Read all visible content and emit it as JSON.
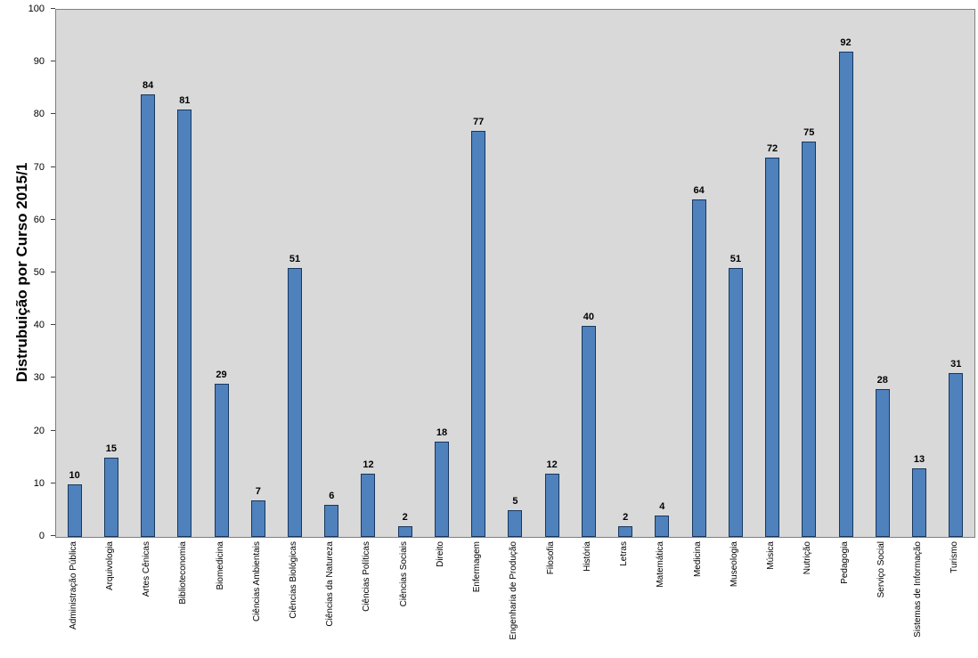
{
  "chart_data": {
    "type": "bar",
    "title": "Distrubuição por Curso 2015/1",
    "xlabel": "",
    "ylabel": "Distrubuição por Curso 2015/1",
    "ylim": [
      0,
      100
    ],
    "yticks": [
      0,
      10,
      20,
      30,
      40,
      50,
      60,
      70,
      80,
      90,
      100
    ],
    "grid": false,
    "legend": "none",
    "plot_background": "#d9d9d9",
    "bar_fill": "#4f81bd",
    "bar_border": "#17375e",
    "categories": [
      "Administração Pública",
      "Arquivologia",
      "Artes Cênicas",
      "Biblioteconomia",
      "Biomedicina",
      "Ciências Ambientais",
      "Ciências Biológicas",
      "Ciências da Natureza",
      "Ciências Políticas",
      "Ciências Sociais",
      "Direito",
      "Enfermagem",
      "Engenharia de Produção",
      "Filosofia",
      "História",
      "Letras",
      "Matemática",
      "Medicina",
      "Museologia",
      "Música",
      "Nutrição",
      "Pedagogia",
      "Serviço Social",
      "Sistemas de Informação",
      "Turismo"
    ],
    "values": [
      10,
      15,
      84,
      81,
      29,
      7,
      51,
      6,
      12,
      2,
      18,
      77,
      5,
      12,
      40,
      2,
      4,
      64,
      51,
      72,
      75,
      92,
      28,
      13,
      31
    ]
  }
}
